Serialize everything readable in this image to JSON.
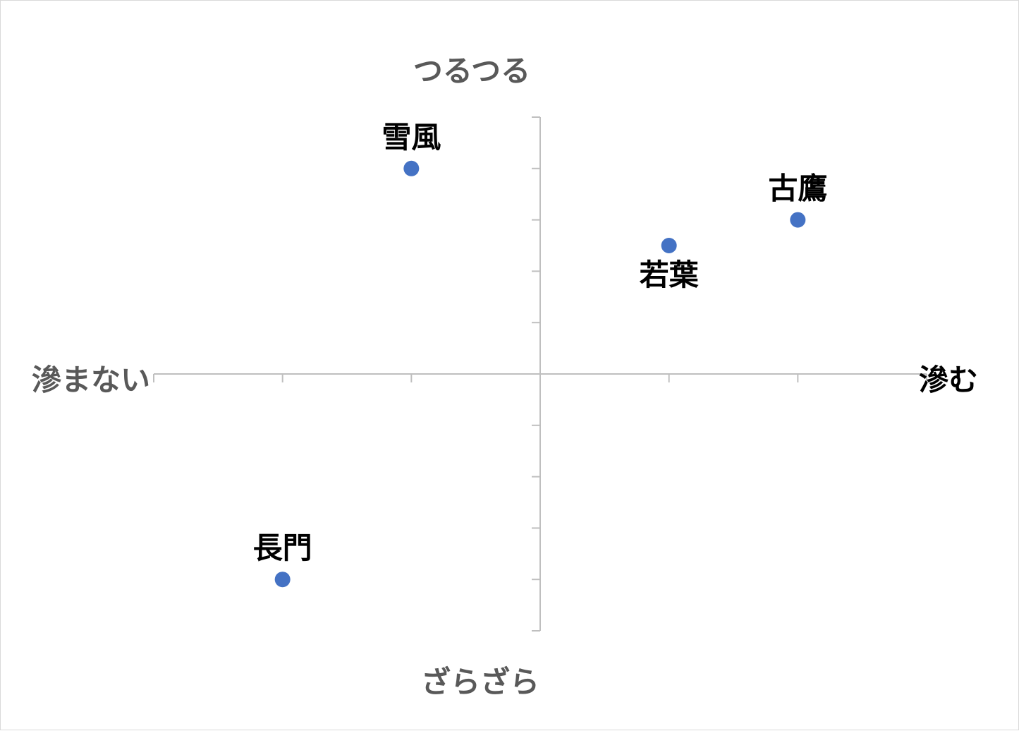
{
  "chart_data": {
    "type": "scatter",
    "xlim": [
      -3,
      3
    ],
    "ylim": [
      -5,
      5
    ],
    "grid": false,
    "axis_titles": {
      "top": "つるつる",
      "bottom": "ざらざら",
      "left": "滲まない",
      "right": "滲む"
    },
    "colors": {
      "point": "#4472c4",
      "axis": "#bfbfbf",
      "axis_title": "#595959",
      "label": "#000000"
    },
    "points": [
      {
        "name": "雪風",
        "x": -1,
        "y": 4,
        "label_position": "above"
      },
      {
        "name": "古鷹",
        "x": 2,
        "y": 3,
        "label_position": "above"
      },
      {
        "name": "若葉",
        "x": 1,
        "y": 2.5,
        "label_position": "below"
      },
      {
        "name": "長門",
        "x": -2,
        "y": -4,
        "label_position": "above"
      }
    ]
  }
}
